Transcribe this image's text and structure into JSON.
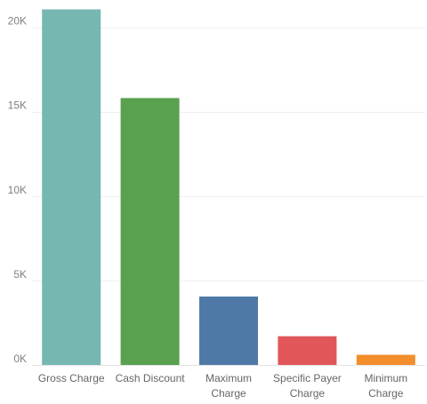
{
  "chart_data": {
    "type": "bar",
    "categories": [
      "Gross Charge",
      "Cash Discount",
      "Maximum Charge",
      "Specific Payer Charge",
      "Minimum Charge"
    ],
    "category_label_lines": [
      [
        "Gross Charge"
      ],
      [
        "Cash Discount"
      ],
      [
        "Maximum",
        "Charge"
      ],
      [
        "Specific Payer",
        "Charge"
      ],
      [
        "Minimum",
        "Charge"
      ]
    ],
    "values": [
      21050,
      15800,
      4050,
      1700,
      600
    ],
    "colors": [
      "#76b7b2",
      "#59a14f",
      "#4e79a7",
      "#e15759",
      "#f28e2b"
    ],
    "ylim": [
      0,
      21500
    ],
    "yticks": [
      0,
      5000,
      10000,
      15000,
      20000
    ],
    "ytick_labels": [
      "0K",
      "5K",
      "10K",
      "15K",
      "20K"
    ],
    "grid": true
  }
}
